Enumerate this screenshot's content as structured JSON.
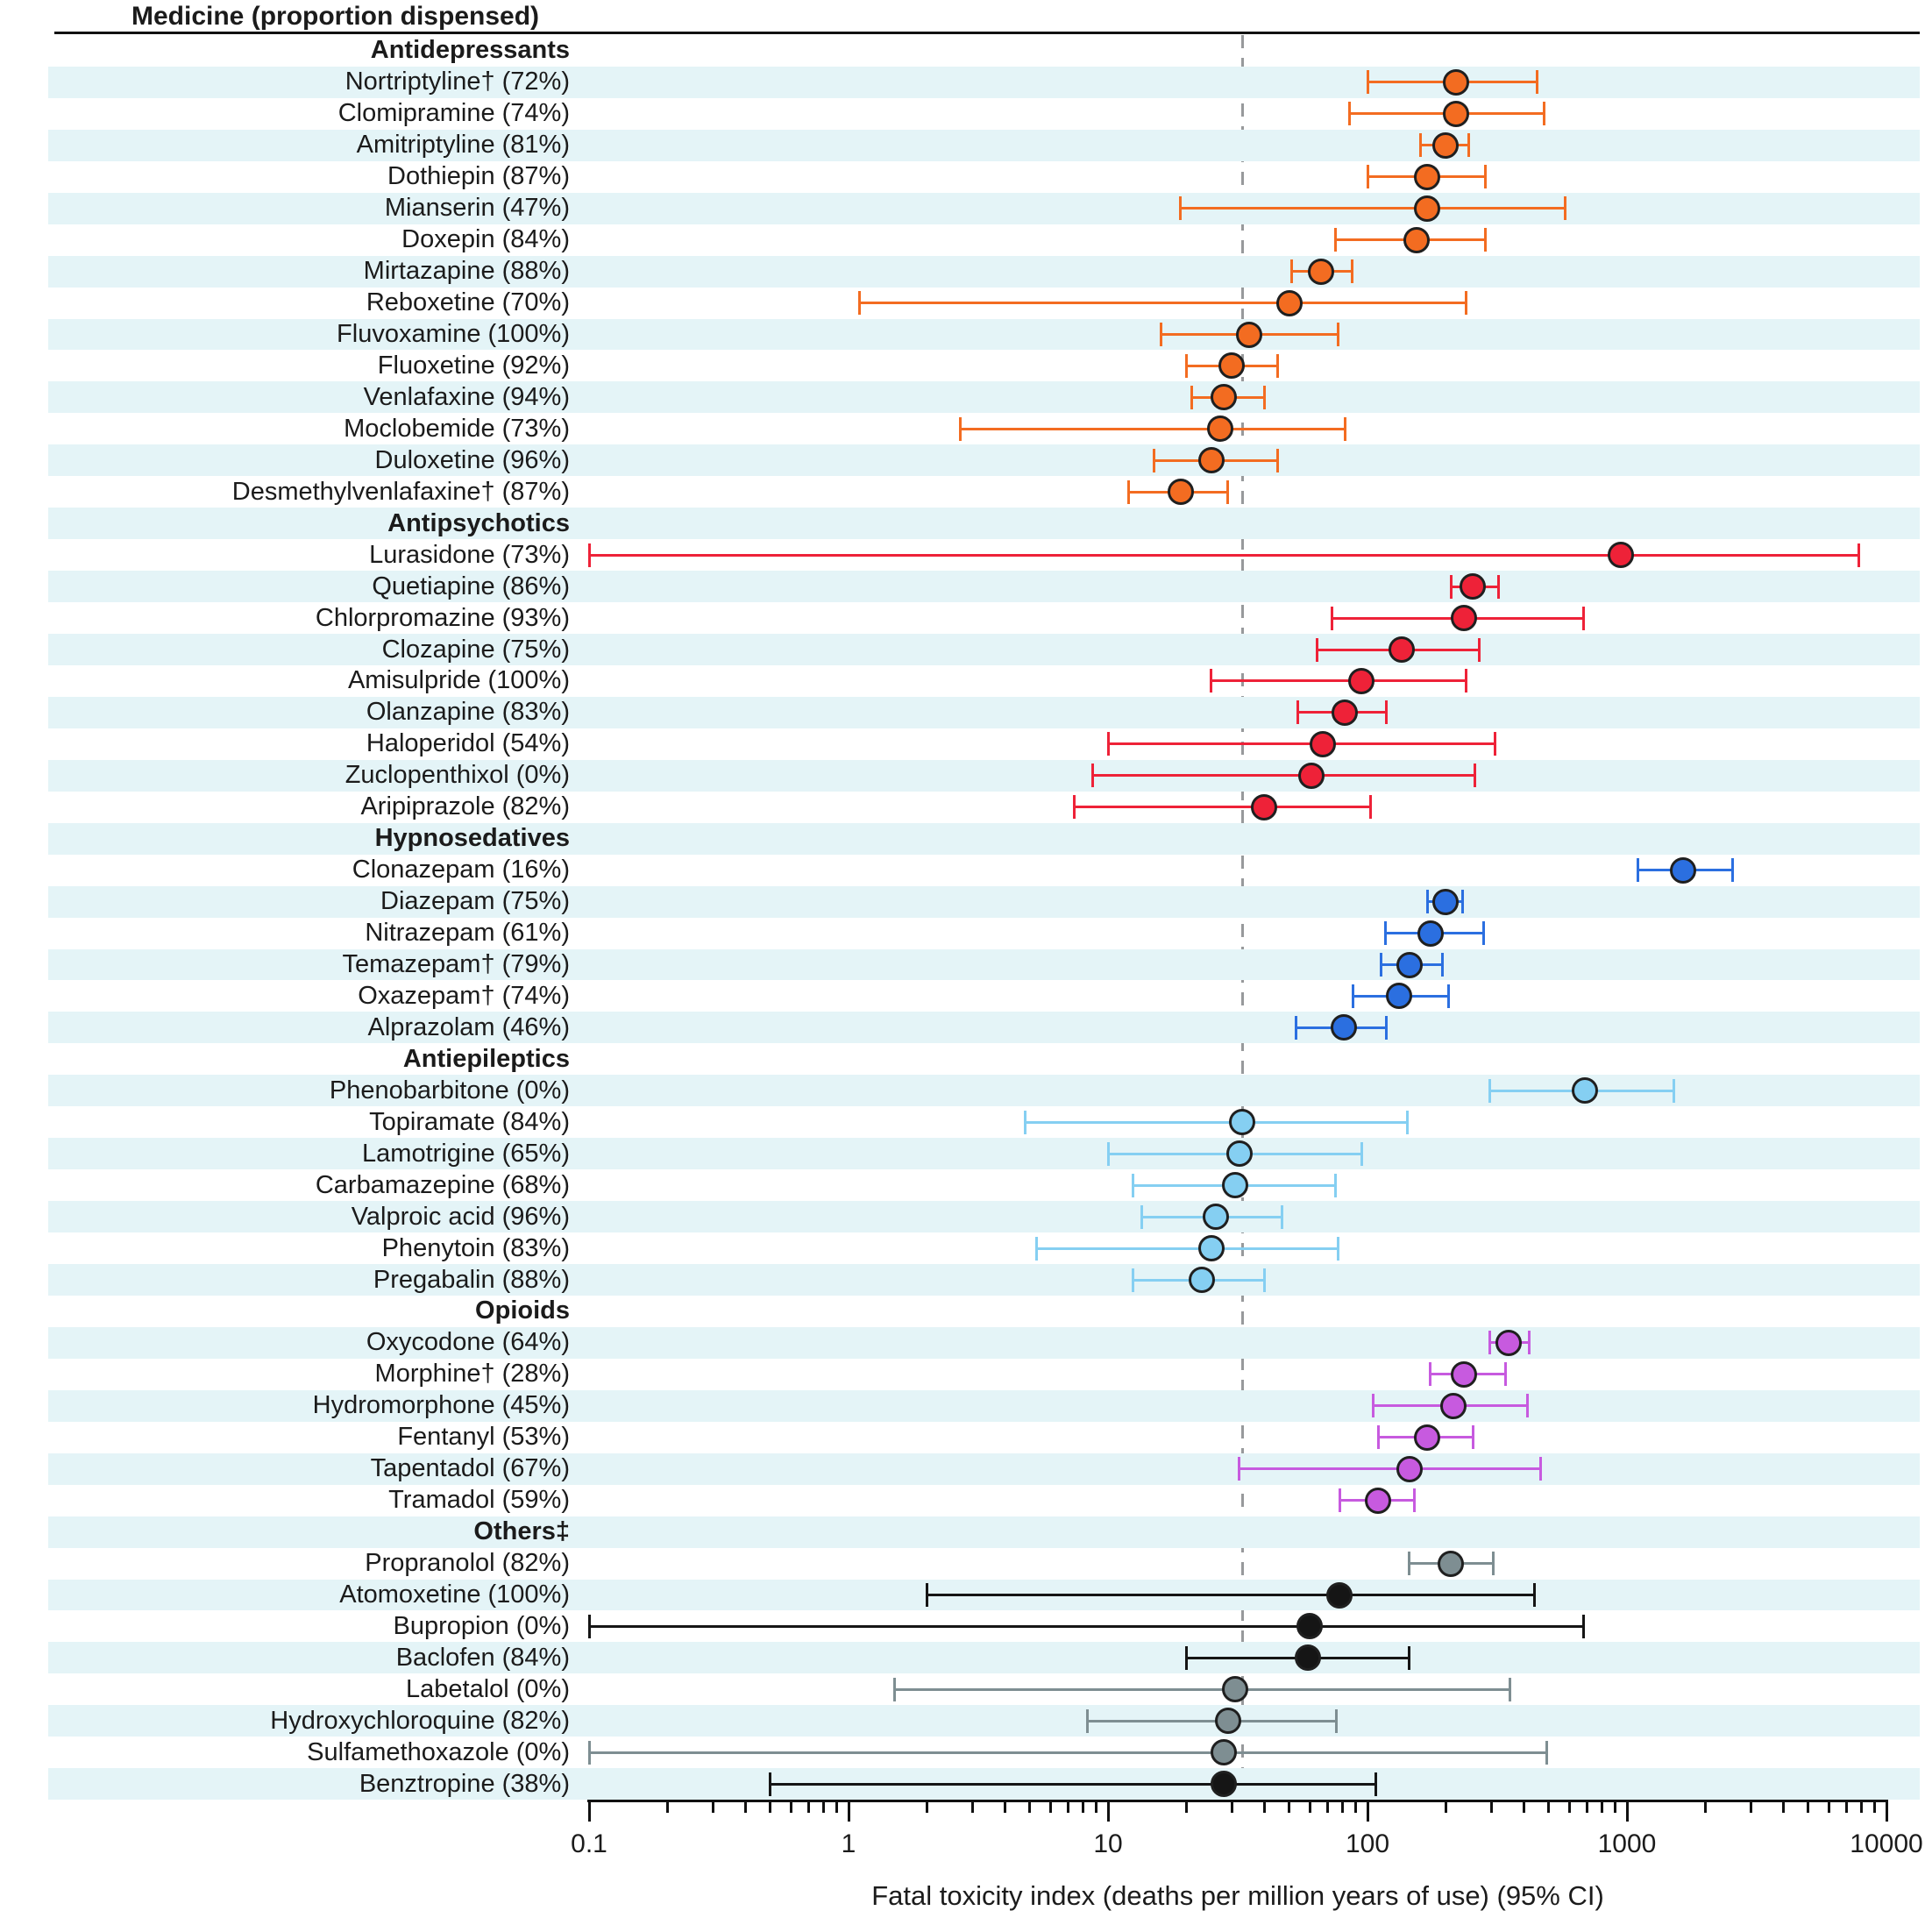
{
  "title": "Medicine (proportion dispensed)",
  "xlabel": "Fatal toxicity index (deaths per million years of use) (95% CI)",
  "axis": {
    "scale": "log",
    "min": 0.1,
    "max": 10000,
    "tick_labels": [
      "0.1",
      "1",
      "10",
      "100",
      "1000",
      "10000"
    ]
  },
  "reference_line_value": 33,
  "colors": {
    "row_shade": "#e4f4f7",
    "antidepressants": "#f36c21",
    "antipsychotics": "#ee2238",
    "hypnosedatives": "#2b6fe0",
    "antiepileptics": "#85cff2",
    "opioids": "#c75adf",
    "others_gray": "#7e8e92",
    "others_black": "#151515"
  },
  "chart_data": {
    "type": "forest",
    "x_unit": "deaths per million years of use",
    "groups": [
      {
        "name": "Antidepressants",
        "color": "#f36c21",
        "items": [
          {
            "label": "Nortriptyline† (72%)",
            "value": 220,
            "ci": [
              100,
              450
            ]
          },
          {
            "label": "Clomipramine (74%)",
            "value": 220,
            "ci": [
              85,
              480
            ]
          },
          {
            "label": "Amitriptyline (81%)",
            "value": 200,
            "ci": [
              160,
              245
            ]
          },
          {
            "label": "Dothiepin (87%)",
            "value": 170,
            "ci": [
              100,
              285
            ]
          },
          {
            "label": "Mianserin (47%)",
            "value": 170,
            "ci": [
              19,
              580
            ]
          },
          {
            "label": "Doxepin (84%)",
            "value": 155,
            "ci": [
              75,
              285
            ]
          },
          {
            "label": "Mirtazapine (88%)",
            "value": 66,
            "ci": [
              51,
              87
            ]
          },
          {
            "label": "Reboxetine (70%)",
            "value": 50,
            "ci": [
              1.1,
              240
            ]
          },
          {
            "label": "Fluvoxamine (100%)",
            "value": 35,
            "ci": [
              16,
              77
            ]
          },
          {
            "label": "Fluoxetine (92%)",
            "value": 30,
            "ci": [
              20,
              45
            ]
          },
          {
            "label": "Venlafaxine (94%)",
            "value": 28,
            "ci": [
              21,
              40
            ]
          },
          {
            "label": "Moclobemide (73%)",
            "value": 27,
            "ci": [
              2.7,
              82
            ]
          },
          {
            "label": "Duloxetine (96%)",
            "value": 25,
            "ci": [
              15,
              45
            ]
          },
          {
            "label": "Desmethylvenlafaxine† (87%)",
            "value": 19,
            "ci": [
              12,
              29
            ]
          }
        ]
      },
      {
        "name": "Antipsychotics",
        "color": "#ee2238",
        "items": [
          {
            "label": "Lurasidone (73%)",
            "value": 950,
            "ci": [
              0.1,
              7800
            ]
          },
          {
            "label": "Quetiapine (86%)",
            "value": 255,
            "ci": [
              210,
              320
            ]
          },
          {
            "label": "Chlorpromazine (93%)",
            "value": 235,
            "ci": [
              73,
              680
            ]
          },
          {
            "label": "Clozapine (75%)",
            "value": 135,
            "ci": [
              64,
              270
            ]
          },
          {
            "label": "Amisulpride (100%)",
            "value": 95,
            "ci": [
              25,
              240
            ]
          },
          {
            "label": "Olanzapine (83%)",
            "value": 82,
            "ci": [
              54,
              118
            ]
          },
          {
            "label": "Haloperidol (54%)",
            "value": 67,
            "ci": [
              10,
              310
            ]
          },
          {
            "label": "Zuclopenthixol (0%)",
            "value": 61,
            "ci": [
              8.7,
              260
            ]
          },
          {
            "label": "Aripiprazole (82%)",
            "value": 40,
            "ci": [
              7.4,
              103
            ]
          }
        ]
      },
      {
        "name": "Hypnosedatives",
        "color": "#2b6fe0",
        "items": [
          {
            "label": "Clonazepam (16%)",
            "value": 1650,
            "ci": [
              1100,
              2550
            ]
          },
          {
            "label": "Diazepam (75%)",
            "value": 200,
            "ci": [
              170,
              232
            ]
          },
          {
            "label": "Nitrazepam (61%)",
            "value": 175,
            "ci": [
              117,
              280
            ]
          },
          {
            "label": "Temazepam† (79%)",
            "value": 145,
            "ci": [
              113,
              195
            ]
          },
          {
            "label": "Oxazepam† (74%)",
            "value": 132,
            "ci": [
              88,
              205
            ]
          },
          {
            "label": "Alprazolam (46%)",
            "value": 81,
            "ci": [
              53,
              118
            ]
          }
        ]
      },
      {
        "name": "Antiepileptics",
        "color": "#85cff2",
        "items": [
          {
            "label": "Phenobarbitone (0%)",
            "value": 690,
            "ci": [
              295,
              1520
            ]
          },
          {
            "label": "Topiramate (84%)",
            "value": 33,
            "ci": [
              4.8,
              142
            ]
          },
          {
            "label": "Lamotrigine (65%)",
            "value": 32,
            "ci": [
              10,
              95
            ]
          },
          {
            "label": "Carbamazepine (68%)",
            "value": 31,
            "ci": [
              12.5,
              75
            ]
          },
          {
            "label": "Valproic acid (96%)",
            "value": 26,
            "ci": [
              13.5,
              47
            ]
          },
          {
            "label": "Phenytoin (83%)",
            "value": 25,
            "ci": [
              5.3,
              77
            ]
          },
          {
            "label": "Pregabalin (88%)",
            "value": 23,
            "ci": [
              12.5,
              40
            ]
          }
        ]
      },
      {
        "name": "Opioids",
        "color": "#c75adf",
        "items": [
          {
            "label": "Oxycodone (64%)",
            "value": 350,
            "ci": [
              295,
              420
            ]
          },
          {
            "label": "Morphine† (28%)",
            "value": 235,
            "ci": [
              175,
              340
            ]
          },
          {
            "label": "Hydromorphone (45%)",
            "value": 215,
            "ci": [
              105,
              415
            ]
          },
          {
            "label": "Fentanyl (53%)",
            "value": 170,
            "ci": [
              110,
              255
            ]
          },
          {
            "label": "Tapentadol (67%)",
            "value": 145,
            "ci": [
              32,
              465
            ]
          },
          {
            "label": "Tramadol (59%)",
            "value": 110,
            "ci": [
              78,
              152
            ]
          }
        ]
      },
      {
        "name": "Others‡",
        "color": "#151515",
        "items": [
          {
            "label": "Propranolol (82%)",
            "value": 210,
            "ci": [
              145,
              305
            ],
            "color": "#7e8e92"
          },
          {
            "label": "Atomoxetine (100%)",
            "value": 78,
            "ci": [
              2.0,
              440
            ],
            "color": "#151515"
          },
          {
            "label": "Bupropion (0%)",
            "value": 60,
            "ci": [
              0.1,
              680
            ],
            "color": "#151515"
          },
          {
            "label": "Baclofen (84%)",
            "value": 59,
            "ci": [
              20,
              145
            ],
            "color": "#151515"
          },
          {
            "label": "Labetalol (0%)",
            "value": 31,
            "ci": [
              1.5,
              355
            ],
            "color": "#7e8e92"
          },
          {
            "label": "Hydroxychloroquine (82%)",
            "value": 29,
            "ci": [
              8.3,
              76
            ],
            "color": "#7e8e92"
          },
          {
            "label": "Sulfamethoxazole (0%)",
            "value": 28,
            "ci": [
              0.1,
              490
            ],
            "color": "#7e8e92"
          },
          {
            "label": "Benztropine (38%)",
            "value": 28,
            "ci": [
              0.5,
              108
            ],
            "color": "#151515"
          }
        ]
      }
    ]
  }
}
